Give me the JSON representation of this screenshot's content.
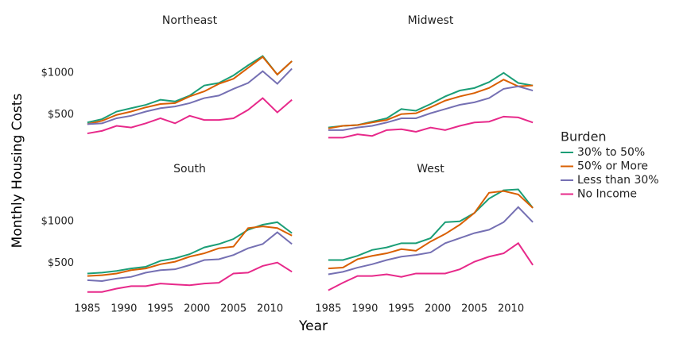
{
  "xlabel": "Year",
  "ylabel": "Monthly Housing Costs",
  "legend_title": "Burden",
  "legend_position": "right",
  "chart_data": [
    {
      "type": "line",
      "title": "Northeast",
      "x": [
        1985,
        1987,
        1989,
        1991,
        1993,
        1995,
        1997,
        1999,
        2001,
        2003,
        2005,
        2007,
        2009,
        2011,
        2013
      ],
      "series": [
        {
          "name": "30% to 50%",
          "color": "#1b9e77",
          "values": [
            410,
            450,
            540,
            580,
            620,
            680,
            660,
            730,
            850,
            880,
            970,
            1090,
            1200,
            980,
            1140
          ]
        },
        {
          "name": "50% or More",
          "color": "#d95f02",
          "values": [
            390,
            430,
            500,
            540,
            590,
            630,
            640,
            720,
            780,
            870,
            930,
            1060,
            1190,
            980,
            1140
          ]
        },
        {
          "name": "Less than 30%",
          "color": "#7570b3",
          "values": [
            390,
            400,
            460,
            490,
            540,
            580,
            600,
            640,
            700,
            730,
            810,
            880,
            1020,
            870,
            1050
          ]
        },
        {
          "name": "No Income",
          "color": "#e7298a",
          "values": [
            280,
            310,
            370,
            350,
            400,
            460,
            400,
            490,
            440,
            440,
            460,
            560,
            700,
            530,
            680
          ]
        }
      ],
      "xlim": [
        1983.6,
        2014.4
      ],
      "ylim": [
        120,
        1470
      ],
      "yticks": [
        {
          "value": 500,
          "label": "$500"
        },
        {
          "value": 1000,
          "label": "$1000"
        }
      ]
    },
    {
      "type": "line",
      "title": "Midwest",
      "x": [
        1985,
        1987,
        1989,
        1991,
        1993,
        1995,
        1997,
        1999,
        2001,
        2003,
        2005,
        2007,
        2009,
        2011,
        2013
      ],
      "series": [
        {
          "name": "30% to 50%",
          "color": "#1b9e77",
          "values": [
            350,
            370,
            380,
            420,
            460,
            570,
            550,
            630,
            720,
            790,
            820,
            890,
            1000,
            880,
            850
          ]
        },
        {
          "name": "50% or More",
          "color": "#d95f02",
          "values": [
            340,
            370,
            380,
            410,
            440,
            510,
            520,
            590,
            670,
            720,
            760,
            820,
            920,
            840,
            850
          ]
        },
        {
          "name": "Less than 30%",
          "color": "#7570b3",
          "values": [
            320,
            320,
            350,
            370,
            410,
            460,
            460,
            520,
            570,
            620,
            650,
            700,
            810,
            840,
            790
          ]
        },
        {
          "name": "No Income",
          "color": "#e7298a",
          "values": [
            230,
            230,
            270,
            250,
            320,
            330,
            300,
            350,
            320,
            370,
            410,
            420,
            480,
            470,
            410
          ]
        }
      ],
      "xlim": [
        1983.6,
        2014.4
      ],
      "ylim": [
        120,
        1470
      ]
    },
    {
      "type": "line",
      "title": "South",
      "x": [
        1985,
        1987,
        1989,
        1991,
        1993,
        1995,
        1997,
        1999,
        2001,
        2003,
        2005,
        2007,
        2009,
        2011,
        2013
      ],
      "series": [
        {
          "name": "30% to 50%",
          "color": "#1b9e77",
          "values": [
            380,
            390,
            410,
            440,
            460,
            530,
            560,
            610,
            690,
            730,
            790,
            900,
            960,
            990,
            860
          ]
        },
        {
          "name": "50% or More",
          "color": "#d95f02",
          "values": [
            350,
            360,
            380,
            420,
            440,
            490,
            520,
            580,
            620,
            680,
            700,
            920,
            940,
            920,
            830
          ]
        },
        {
          "name": "Less than 30%",
          "color": "#7570b3",
          "values": [
            300,
            290,
            320,
            340,
            390,
            420,
            430,
            480,
            540,
            550,
            600,
            680,
            730,
            870,
            730
          ]
        },
        {
          "name": "No Income",
          "color": "#e7298a",
          "values": [
            160,
            160,
            200,
            230,
            230,
            260,
            250,
            240,
            260,
            270,
            380,
            390,
            470,
            510,
            400
          ]
        }
      ],
      "xlim": [
        1983.6,
        2014.4
      ],
      "ylim": [
        120,
        1470
      ],
      "xticks": [
        1985,
        1990,
        1995,
        2000,
        2005,
        2010
      ],
      "yticks": [
        {
          "value": 500,
          "label": "$500"
        },
        {
          "value": 1000,
          "label": "$1000"
        }
      ]
    },
    {
      "type": "line",
      "title": "West",
      "x": [
        1985,
        1987,
        1989,
        1991,
        1993,
        1995,
        1997,
        1999,
        2001,
        2003,
        2005,
        2007,
        2009,
        2011,
        2013
      ],
      "series": [
        {
          "name": "30% to 50%",
          "color": "#1b9e77",
          "values": [
            540,
            540,
            590,
            660,
            690,
            740,
            740,
            800,
            990,
            1000,
            1100,
            1270,
            1370,
            1380,
            1160
          ]
        },
        {
          "name": "50% or More",
          "color": "#d95f02",
          "values": [
            440,
            450,
            550,
            590,
            620,
            670,
            650,
            760,
            850,
            960,
            1100,
            1340,
            1360,
            1320,
            1160
          ]
        },
        {
          "name": "Less than 30%",
          "color": "#7570b3",
          "values": [
            370,
            400,
            450,
            490,
            540,
            580,
            600,
            630,
            740,
            800,
            860,
            900,
            990,
            1170,
            990
          ]
        },
        {
          "name": "No Income",
          "color": "#e7298a",
          "values": [
            180,
            270,
            350,
            350,
            370,
            340,
            380,
            380,
            380,
            430,
            520,
            580,
            620,
            740,
            480
          ]
        }
      ],
      "xlim": [
        1983.6,
        2014.4
      ],
      "ylim": [
        120,
        1470
      ],
      "xticks": [
        1985,
        1990,
        1995,
        2000,
        2005,
        2010
      ]
    }
  ]
}
